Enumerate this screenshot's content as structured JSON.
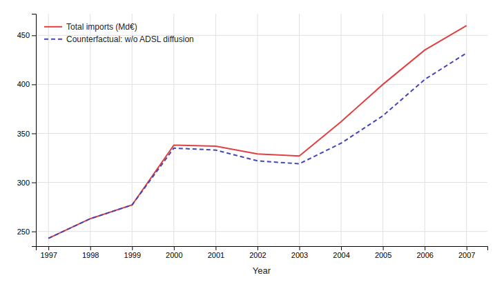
{
  "chart_data": {
    "type": "line",
    "x_label": "Year",
    "x": [
      1997,
      1998,
      1999,
      2000,
      2001,
      2002,
      2003,
      2004,
      2005,
      2006,
      2007
    ],
    "series": [
      {
        "name": "Total imports (Md€)",
        "color": "#e04040",
        "line_style": "solid",
        "values": [
          243,
          263,
          277,
          338,
          337,
          329,
          327,
          362,
          400,
          435,
          460
        ]
      },
      {
        "name": "Counterfactual: w/o ADSL diffusion",
        "color": "#4444bb",
        "line_style": "dashed",
        "values": [
          243,
          263,
          277,
          335,
          333,
          322,
          319,
          340,
          368,
          405,
          432
        ]
      }
    ],
    "xlim": [
      1996.7,
      2007.5
    ],
    "xticks": [
      1997,
      1998,
      1999,
      2000,
      2001,
      2002,
      2003,
      2004,
      2005,
      2006,
      2007
    ],
    "ylim": [
      235,
      472
    ],
    "yticks": [
      250,
      300,
      350,
      400,
      450
    ],
    "grid": true,
    "legend": "upper left"
  }
}
